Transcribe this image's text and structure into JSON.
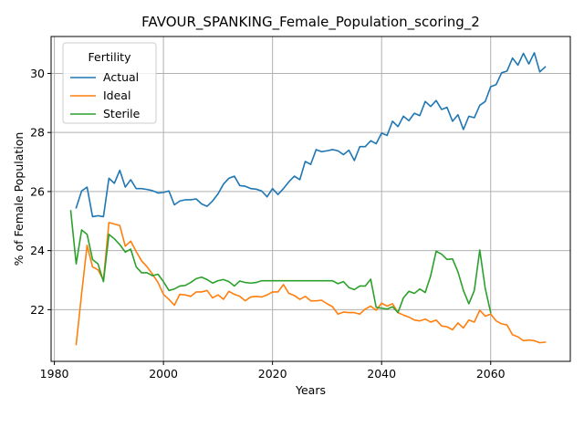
{
  "chart_data": {
    "type": "line",
    "title": "FAVOUR_SPANKING_Female_Population_scoring_2",
    "xlabel": "Years",
    "ylabel": "% of Female Population",
    "xlim": [
      1979.4,
      2074.6
    ],
    "ylim": [
      20.25,
      31.25
    ],
    "xticks": [
      1980,
      2000,
      2020,
      2040,
      2060
    ],
    "yticks": [
      22,
      24,
      26,
      28,
      30
    ],
    "grid": true,
    "legend": {
      "title": "Fertility",
      "position": "top-left"
    },
    "x": [
      1983,
      1984,
      1985,
      1986,
      1987,
      1988,
      1989,
      1990,
      1991,
      1992,
      1993,
      1994,
      1995,
      1996,
      1997,
      1998,
      1999,
      2000,
      2001,
      2002,
      2003,
      2004,
      2005,
      2006,
      2007,
      2008,
      2009,
      2010,
      2011,
      2012,
      2013,
      2014,
      2015,
      2016,
      2017,
      2018,
      2019,
      2020,
      2021,
      2022,
      2023,
      2024,
      2025,
      2026,
      2027,
      2028,
      2029,
      2030,
      2031,
      2032,
      2033,
      2034,
      2035,
      2036,
      2037,
      2038,
      2039,
      2040,
      2041,
      2042,
      2043,
      2044,
      2045,
      2046,
      2047,
      2048,
      2049,
      2050,
      2051,
      2052,
      2053,
      2054,
      2055,
      2056,
      2057,
      2058,
      2059,
      2060,
      2061,
      2062,
      2063,
      2064,
      2065,
      2066,
      2067,
      2068,
      2069,
      2070
    ],
    "series": [
      {
        "name": "Actual",
        "color": "#1f77b4",
        "values": [
          null,
          25.45,
          26.02,
          26.15,
          25.15,
          25.18,
          25.15,
          26.45,
          26.28,
          26.72,
          26.15,
          26.4,
          26.1,
          26.1,
          26.07,
          26.03,
          25.95,
          25.97,
          26.02,
          25.55,
          25.68,
          25.72,
          25.72,
          25.75,
          25.58,
          25.5,
          25.68,
          25.92,
          26.25,
          26.45,
          26.52,
          26.2,
          26.18,
          26.1,
          26.08,
          26.02,
          25.82,
          26.1,
          25.9,
          26.1,
          26.33,
          26.52,
          26.4,
          27.02,
          26.92,
          27.42,
          27.35,
          27.38,
          27.42,
          27.38,
          27.25,
          27.4,
          27.05,
          27.52,
          27.52,
          27.72,
          27.62,
          27.98,
          27.9,
          28.38,
          28.2,
          28.55,
          28.4,
          28.65,
          28.57,
          29.05,
          28.88,
          29.08,
          28.78,
          28.85,
          28.38,
          28.6,
          28.1,
          28.55,
          28.5,
          28.92,
          29.05,
          29.55,
          29.62,
          30.02,
          30.08,
          30.52,
          30.28,
          30.68,
          30.32,
          30.7,
          30.05,
          30.22
        ]
      },
      {
        "name": "Ideal",
        "color": "#ff7f0e",
        "values": [
          null,
          20.82,
          22.55,
          24.18,
          23.45,
          23.35,
          23.0,
          24.95,
          24.9,
          24.85,
          24.15,
          24.32,
          23.97,
          23.65,
          23.45,
          23.2,
          22.92,
          22.52,
          22.35,
          22.15,
          22.52,
          22.5,
          22.45,
          22.6,
          22.6,
          22.65,
          22.4,
          22.5,
          22.35,
          22.62,
          22.52,
          22.45,
          22.3,
          22.43,
          22.45,
          22.43,
          22.5,
          22.6,
          22.6,
          22.85,
          22.55,
          22.48,
          22.35,
          22.45,
          22.3,
          22.3,
          22.32,
          22.2,
          22.1,
          21.85,
          21.92,
          21.9,
          21.9,
          21.85,
          22.02,
          22.12,
          21.98,
          22.22,
          22.12,
          22.2,
          21.9,
          21.82,
          21.75,
          21.65,
          21.62,
          21.68,
          21.58,
          21.65,
          21.45,
          21.42,
          21.32,
          21.55,
          21.38,
          21.65,
          21.58,
          21.98,
          21.78,
          21.85,
          21.62,
          21.52,
          21.48,
          21.15,
          21.08,
          20.95,
          20.97,
          20.95,
          20.88,
          20.9
        ]
      },
      {
        "name": "Sterile",
        "color": "#2ca02c",
        "values": [
          25.35,
          23.55,
          24.7,
          24.55,
          23.7,
          23.55,
          22.95,
          24.55,
          24.4,
          24.2,
          23.95,
          24.05,
          23.45,
          23.25,
          23.25,
          23.15,
          23.2,
          22.95,
          22.65,
          22.7,
          22.8,
          22.82,
          22.92,
          23.05,
          23.1,
          23.02,
          22.9,
          22.98,
          23.02,
          22.95,
          22.8,
          22.97,
          22.92,
          22.9,
          22.92,
          22.98,
          22.98,
          22.98,
          22.98,
          22.98,
          22.98,
          22.98,
          22.98,
          22.98,
          22.98,
          22.98,
          22.98,
          22.98,
          22.98,
          22.88,
          22.95,
          22.75,
          22.68,
          22.8,
          22.8,
          23.03,
          22.08,
          22.05,
          22.02,
          22.1,
          21.9,
          22.4,
          22.62,
          22.55,
          22.7,
          22.58,
          23.15,
          23.98,
          23.88,
          23.7,
          23.72,
          23.28,
          22.65,
          22.2,
          22.65,
          24.02,
          22.72,
          21.9,
          null,
          null,
          null,
          null,
          null,
          null,
          null,
          null,
          null,
          null
        ]
      }
    ]
  }
}
